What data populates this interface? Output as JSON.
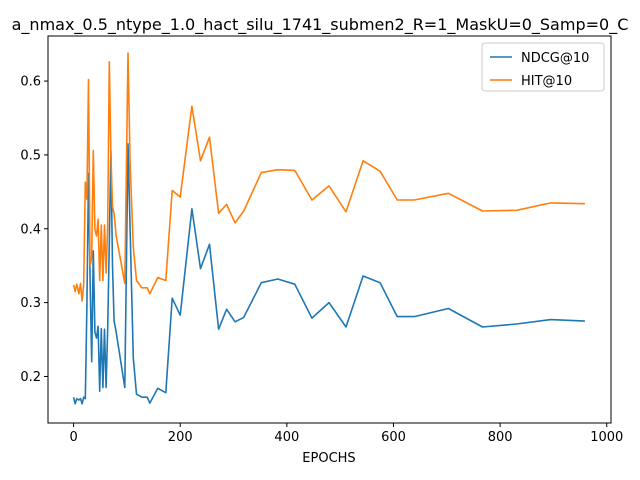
{
  "chart_data": {
    "type": "line",
    "title": "a_nmax_0.5_ntype_1.0_hact_silu_1741_submen2_R=1_MaskU=0_Samp=0_C",
    "xlabel": "EPOCHS",
    "ylabel": "",
    "xlim": [
      -48,
      1008
    ],
    "ylim": [
      0.137,
      0.661
    ],
    "xticks": [
      0,
      200,
      400,
      600,
      800,
      1000
    ],
    "yticks": [
      0.2,
      0.3,
      0.4,
      0.5,
      0.6
    ],
    "xtick_labels": [
      "0",
      "200",
      "400",
      "600",
      "800",
      "1000"
    ],
    "ytick_labels": [
      "0.2",
      "0.3",
      "0.4",
      "0.5",
      "0.6"
    ],
    "grid": false,
    "legend_position": "top-right",
    "series": [
      {
        "name": "NDCG@10",
        "color": "#1f77b4",
        "x": [
          0,
          3,
          6,
          10,
          13,
          16,
          19,
          22,
          25,
          28,
          31,
          34,
          37,
          40,
          43,
          46,
          49,
          52,
          55,
          58,
          61,
          64,
          67,
          70,
          73,
          76,
          80,
          96,
          102,
          106,
          112,
          118,
          128,
          138,
          143,
          158,
          173,
          185,
          200,
          222,
          238,
          255,
          272,
          287,
          303,
          319,
          352,
          383,
          415,
          447,
          479,
          511,
          543,
          575,
          607,
          639,
          703,
          767,
          831,
          895,
          959
        ],
        "y": [
          0.172,
          0.163,
          0.17,
          0.168,
          0.17,
          0.163,
          0.172,
          0.17,
          0.295,
          0.475,
          0.33,
          0.22,
          0.37,
          0.26,
          0.252,
          0.268,
          0.18,
          0.265,
          0.185,
          0.264,
          0.185,
          0.265,
          0.38,
          0.505,
          0.35,
          0.275,
          0.26,
          0.185,
          0.515,
          0.4,
          0.225,
          0.176,
          0.172,
          0.172,
          0.164,
          0.184,
          0.178,
          0.306,
          0.283,
          0.427,
          0.346,
          0.379,
          0.264,
          0.291,
          0.274,
          0.28,
          0.327,
          0.332,
          0.325,
          0.279,
          0.3,
          0.267,
          0.336,
          0.327,
          0.281,
          0.281,
          0.292,
          0.267,
          0.271,
          0.277,
          0.275
        ]
      },
      {
        "name": "HIT@10",
        "color": "#ff7f0e",
        "x": [
          0,
          3,
          6,
          10,
          13,
          16,
          19,
          22,
          25,
          28,
          31,
          34,
          37,
          40,
          43,
          46,
          49,
          52,
          55,
          58,
          61,
          64,
          67,
          70,
          73,
          76,
          80,
          96,
          102,
          106,
          112,
          118,
          128,
          138,
          143,
          158,
          173,
          185,
          200,
          222,
          238,
          255,
          272,
          287,
          303,
          319,
          352,
          383,
          415,
          447,
          479,
          511,
          543,
          575,
          607,
          639,
          703,
          767,
          831,
          895,
          959
        ],
        "y": [
          0.324,
          0.315,
          0.325,
          0.312,
          0.326,
          0.302,
          0.325,
          0.463,
          0.44,
          0.602,
          0.35,
          0.36,
          0.506,
          0.4,
          0.39,
          0.413,
          0.33,
          0.405,
          0.33,
          0.405,
          0.34,
          0.405,
          0.626,
          0.5,
          0.43,
          0.42,
          0.39,
          0.326,
          0.638,
          0.49,
          0.375,
          0.33,
          0.32,
          0.32,
          0.312,
          0.334,
          0.33,
          0.452,
          0.443,
          0.566,
          0.492,
          0.524,
          0.421,
          0.433,
          0.408,
          0.424,
          0.476,
          0.48,
          0.479,
          0.439,
          0.458,
          0.423,
          0.492,
          0.478,
          0.439,
          0.439,
          0.448,
          0.424,
          0.425,
          0.435,
          0.434
        ]
      }
    ]
  }
}
